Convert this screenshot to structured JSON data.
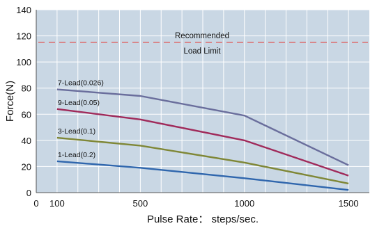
{
  "chart_data": {
    "type": "line",
    "xlabel": "Pulse Rate： steps/sec.",
    "ylabel": "Force(N)",
    "xlim": [
      0,
      1600
    ],
    "ylim": [
      0,
      140
    ],
    "x_ticks": [
      0,
      100,
      500,
      1000,
      1500
    ],
    "y_ticks": [
      0,
      20,
      40,
      60,
      80,
      100,
      120,
      140
    ],
    "grid": true,
    "background_color": "#c9d7e4",
    "grid_color": "#ffffff",
    "series": [
      {
        "name": "7-Lead(0.026)",
        "color": "#6a6e9c",
        "x": [
          100,
          500,
          1000,
          1500
        ],
        "y": [
          79,
          74,
          59,
          21
        ]
      },
      {
        "name": "9-Lead(0.05)",
        "color": "#a02a5a",
        "x": [
          100,
          500,
          1000,
          1500
        ],
        "y": [
          64,
          56,
          40,
          13
        ]
      },
      {
        "name": "3-Lead(0.1)",
        "color": "#7f8736",
        "x": [
          100,
          500,
          1000,
          1500
        ],
        "y": [
          42,
          36,
          23,
          7
        ]
      },
      {
        "name": "1-Lead(0.2)",
        "color": "#2f66ad",
        "x": [
          100,
          500,
          1000,
          1500
        ],
        "y": [
          24,
          19,
          11,
          2
        ]
      }
    ],
    "reference_line": {
      "label_line1": "Recommended",
      "label_line2": "Load Limit",
      "y": 115,
      "color": "#e06060",
      "style": "dashed"
    }
  }
}
